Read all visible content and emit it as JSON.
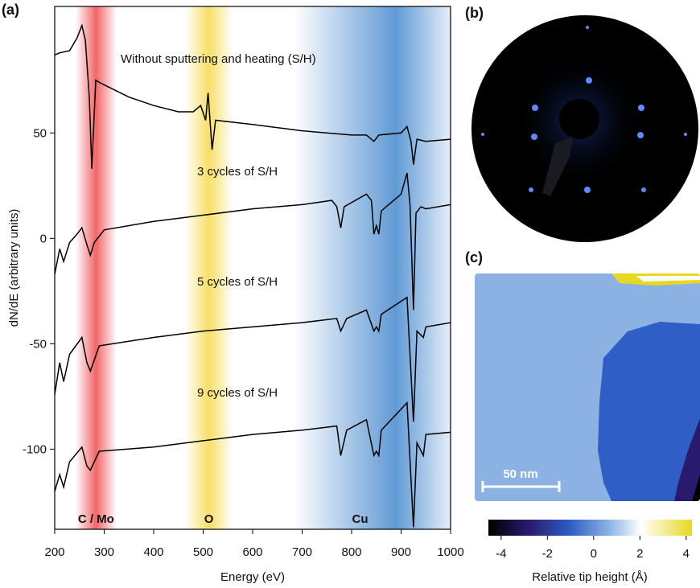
{
  "chart_data": {
    "type": "line",
    "panel_label": "(a)",
    "x_label": "Energy (eV)",
    "y_label": "dN/dE (arbitrary units)",
    "xlim": [
      200,
      1000
    ],
    "ylim": [
      -138,
      110
    ],
    "xticks": [
      200,
      300,
      400,
      500,
      600,
      700,
      800,
      900,
      1000
    ],
    "yticks": [
      -100,
      -50,
      0,
      50
    ],
    "bands": [
      {
        "label": "C / Mo",
        "range": [
          242,
          325
        ],
        "color": "#f25555"
      },
      {
        "label": "O",
        "range": [
          463,
          560
        ],
        "color": "#f5dc55"
      },
      {
        "label": "Cu",
        "range": [
          683,
          1000
        ],
        "color": "#4f8fd0"
      }
    ],
    "series": [
      {
        "name": "Without sputtering and heating (S/H)",
        "color": "#000000",
        "x": [
          200,
          210,
          230,
          245,
          255,
          262,
          270,
          275,
          283,
          290,
          350,
          400,
          450,
          480,
          495,
          505,
          510,
          518,
          525,
          600,
          700,
          800,
          830,
          845,
          855,
          900,
          912,
          920,
          925,
          932,
          950,
          1000
        ],
        "values": [
          87,
          88,
          89,
          95,
          101,
          94,
          67,
          33,
          75,
          74,
          67,
          63,
          60,
          60,
          63,
          56,
          69,
          42,
          56,
          54,
          51,
          49,
          49,
          46,
          49,
          50,
          53,
          46,
          35,
          47,
          46,
          47
        ]
      },
      {
        "name": "3 cycles of S/H",
        "color": "#000000",
        "x": [
          200,
          210,
          218,
          230,
          245,
          255,
          265,
          272,
          280,
          300,
          400,
          500,
          600,
          700,
          760,
          770,
          778,
          785,
          830,
          840,
          845,
          850,
          855,
          860,
          900,
          912,
          918,
          925,
          930,
          940,
          950,
          1000
        ],
        "values": [
          -17,
          -5,
          -11,
          -2,
          2,
          5,
          -3,
          -8,
          -2,
          4,
          8,
          11,
          14,
          16,
          18,
          15,
          5,
          15,
          21,
          18,
          2,
          6,
          2,
          13,
          21,
          31,
          16,
          -34,
          12,
          15,
          14,
          16
        ]
      },
      {
        "name": "5 cycles of S/H",
        "color": "#000000",
        "x": [
          200,
          210,
          218,
          230,
          255,
          265,
          272,
          290,
          400,
          500,
          600,
          700,
          770,
          778,
          790,
          830,
          845,
          850,
          855,
          860,
          912,
          925,
          932,
          945,
          950,
          1000
        ],
        "values": [
          -74,
          -59,
          -68,
          -55,
          -47,
          -59,
          -63,
          -51,
          -47,
          -44,
          -42,
          -40,
          -38,
          -44,
          -38,
          -34,
          -44,
          -42,
          -44,
          -36,
          -28,
          -87,
          -44,
          -47,
          -42,
          -40
        ]
      },
      {
        "name": "9 cycles of S/H",
        "color": "#000000",
        "x": [
          200,
          210,
          218,
          230,
          255,
          265,
          272,
          290,
          400,
          500,
          600,
          700,
          770,
          778,
          790,
          830,
          845,
          850,
          855,
          860,
          912,
          925,
          932,
          945,
          950,
          1000
        ],
        "values": [
          -120,
          -112,
          -118,
          -106,
          -99,
          -108,
          -110,
          -101,
          -99,
          -96,
          -93,
          -91,
          -89,
          -103,
          -91,
          -86,
          -103,
          -101,
          -103,
          -91,
          -78,
          -137,
          -97,
          -103,
          -93,
          -92
        ]
      }
    ]
  },
  "leed": {
    "panel_label": "(b)"
  },
  "stm": {
    "panel_label": "(c)",
    "scale_bar": "50 nm",
    "colorbar_label": "Relative tip height (Å)",
    "clim": [
      -4.55,
      4.25
    ],
    "cticks": [
      -4,
      -2,
      0,
      2,
      4
    ]
  }
}
